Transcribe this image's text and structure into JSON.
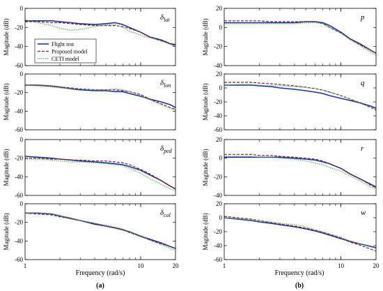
{
  "figure": {
    "xlabel": "Frequency (rad/s)",
    "ylabel": "Magitude (dB)",
    "panel_labels": [
      "(a)",
      "(b)"
    ],
    "legend": [
      {
        "name": "Flight test",
        "color": "#1f2fb0",
        "style": "solid"
      },
      {
        "name": "Proposed model",
        "color": "#8b1a1a",
        "style": "dashed"
      },
      {
        "name": "CETI model",
        "color": "#3cb043",
        "style": "dotted"
      }
    ],
    "x_ticks": [
      "1",
      "10",
      "20"
    ]
  },
  "chart_data": [
    {
      "type": "line",
      "panel": "a",
      "title": "δlat",
      "title_main": "δ",
      "title_sub": "lat",
      "xscale": "log",
      "xlim": [
        1,
        20
      ],
      "ylim": [
        -60,
        0
      ],
      "yticks": [
        0,
        -20,
        -40,
        -60
      ],
      "legend": true,
      "x": [
        1,
        1.3,
        1.7,
        2,
        2.5,
        3,
        4,
        5,
        6,
        7,
        8,
        10,
        12,
        15,
        18,
        20
      ],
      "series": [
        {
          "name": "Flight test",
          "values": [
            -13,
            -13,
            -13,
            -14,
            -15,
            -16,
            -17,
            -16,
            -15,
            -17,
            -20,
            -25,
            -30,
            -33,
            -37,
            -38
          ]
        },
        {
          "name": "Proposed model",
          "values": [
            -14,
            -14,
            -15,
            -15,
            -16,
            -17,
            -18,
            -18,
            -18,
            -19,
            -21,
            -25,
            -30,
            -34,
            -37,
            -39
          ]
        },
        {
          "name": "CETI model",
          "values": [
            -12,
            -15,
            -18,
            -21,
            -23,
            -22,
            -19,
            -17,
            -17,
            -20,
            -24,
            -28,
            -31,
            -34,
            -38,
            -40
          ]
        }
      ]
    },
    {
      "type": "line",
      "panel": "a",
      "title": "δlon",
      "title_main": "δ",
      "title_sub": "lon",
      "xscale": "log",
      "xlim": [
        1,
        20
      ],
      "ylim": [
        -60,
        0
      ],
      "yticks": [
        0,
        -20,
        -40,
        -60
      ],
      "x": [
        1,
        1.3,
        1.7,
        2,
        2.5,
        3,
        4,
        5,
        6,
        7,
        8,
        10,
        12,
        15,
        18,
        20
      ],
      "series": [
        {
          "name": "Flight test",
          "values": [
            -12,
            -12,
            -13,
            -14,
            -16,
            -17,
            -18,
            -18,
            -19,
            -19,
            -21,
            -24,
            -27,
            -30,
            -33,
            -36
          ]
        },
        {
          "name": "Proposed model",
          "values": [
            -12,
            -12,
            -13,
            -14,
            -15,
            -16,
            -17,
            -17,
            -17,
            -18,
            -19,
            -22,
            -27,
            -32,
            -36,
            -38
          ]
        },
        {
          "name": "CETI model",
          "values": [
            -12,
            -13,
            -14,
            -15,
            -16,
            -16,
            -17,
            -17,
            -16,
            -17,
            -19,
            -23,
            -28,
            -33,
            -37,
            -39
          ]
        }
      ]
    },
    {
      "type": "line",
      "panel": "a",
      "title": "δped",
      "title_main": "δ",
      "title_sub": "ped",
      "xscale": "log",
      "xlim": [
        1,
        20
      ],
      "ylim": [
        -60,
        0
      ],
      "yticks": [
        0,
        -20,
        -40,
        -60
      ],
      "x": [
        1,
        1.3,
        1.7,
        2,
        2.5,
        3,
        4,
        5,
        6,
        7,
        8,
        10,
        12,
        15,
        18,
        20
      ],
      "series": [
        {
          "name": "Flight test",
          "values": [
            -18,
            -19,
            -20,
            -21,
            -22,
            -23,
            -24,
            -25,
            -26,
            -27,
            -29,
            -33,
            -38,
            -44,
            -50,
            -53
          ]
        },
        {
          "name": "Proposed model",
          "values": [
            -20,
            -20,
            -21,
            -21,
            -22,
            -22,
            -23,
            -23,
            -24,
            -25,
            -27,
            -32,
            -37,
            -44,
            -50,
            -53
          ]
        },
        {
          "name": "CETI model",
          "values": [
            -21,
            -21,
            -22,
            -23,
            -24,
            -24,
            -25,
            -26,
            -27,
            -28,
            -31,
            -36,
            -42,
            -48,
            -53,
            -55
          ]
        }
      ]
    },
    {
      "type": "line",
      "panel": "a",
      "title": "δcol",
      "title_main": "δ",
      "title_sub": "col",
      "xscale": "log",
      "xlim": [
        1,
        20
      ],
      "ylim": [
        -60,
        0
      ],
      "yticks": [
        0,
        -20,
        -40,
        -60
      ],
      "x": [
        1,
        1.3,
        1.7,
        2,
        2.5,
        3,
        4,
        5,
        6,
        7,
        8,
        10,
        12,
        15,
        18,
        20
      ],
      "series": [
        {
          "name": "Flight test",
          "values": [
            -10,
            -10,
            -11,
            -13,
            -16,
            -18,
            -22,
            -24,
            -26,
            -28,
            -30,
            -35,
            -38,
            -42,
            -46,
            -48
          ]
        },
        {
          "name": "Proposed model",
          "values": [
            -10,
            -11,
            -12,
            -14,
            -16,
            -18,
            -21,
            -24,
            -26,
            -28,
            -31,
            -35,
            -39,
            -43,
            -46,
            -48
          ]
        },
        {
          "name": "CETI model",
          "values": [
            -10,
            -10,
            -11,
            -13,
            -15,
            -18,
            -21,
            -23,
            -25,
            -27,
            -30,
            -34,
            -39,
            -44,
            -48,
            -50
          ]
        }
      ]
    },
    {
      "type": "line",
      "panel": "b",
      "title": "p",
      "title_main": "p",
      "title_sub": "",
      "xscale": "log",
      "xlim": [
        1,
        20
      ],
      "ylim": [
        -40,
        20
      ],
      "yticks": [
        20,
        0,
        -20,
        -40
      ],
      "x": [
        1,
        1.3,
        1.7,
        2,
        2.5,
        3,
        4,
        5,
        6,
        7,
        8,
        10,
        12,
        15,
        18,
        20
      ],
      "series": [
        {
          "name": "Flight test",
          "values": [
            5,
            5,
            5,
            5,
            5,
            5,
            5,
            6,
            6,
            5,
            2,
            -5,
            -12,
            -18,
            -24,
            -27
          ]
        },
        {
          "name": "Proposed model",
          "values": [
            7,
            7,
            7,
            7,
            6,
            6,
            6,
            6,
            6,
            4,
            0,
            -6,
            -12,
            -19,
            -24,
            -27
          ]
        },
        {
          "name": "CETI model",
          "values": [
            4,
            4,
            4,
            4,
            4,
            4,
            4,
            5,
            5,
            4,
            0,
            -6,
            -13,
            -20,
            -26,
            -29
          ]
        }
      ]
    },
    {
      "type": "line",
      "panel": "b",
      "title": "q",
      "title_main": "q",
      "title_sub": "",
      "xscale": "log",
      "xlim": [
        1,
        20
      ],
      "ylim": [
        -60,
        20
      ],
      "yticks": [
        20,
        0,
        -20,
        -40,
        -60
      ],
      "x": [
        1,
        1.3,
        1.7,
        2,
        2.5,
        3,
        4,
        5,
        6,
        7,
        8,
        10,
        12,
        15,
        18,
        20
      ],
      "series": [
        {
          "name": "Flight test",
          "values": [
            4,
            4,
            4,
            3,
            2,
            0,
            -2,
            -4,
            -6,
            -8,
            -11,
            -15,
            -18,
            -22,
            -26,
            -29
          ]
        },
        {
          "name": "Proposed model",
          "values": [
            8,
            8,
            8,
            7,
            6,
            5,
            3,
            1,
            -1,
            -3,
            -6,
            -11,
            -16,
            -22,
            -28,
            -32
          ]
        },
        {
          "name": "CETI model",
          "values": [
            4,
            5,
            5,
            4,
            3,
            3,
            2,
            1,
            -1,
            -3,
            -6,
            -11,
            -16,
            -23,
            -28,
            -30
          ]
        }
      ]
    },
    {
      "type": "line",
      "panel": "b",
      "title": "r",
      "title_main": "r",
      "title_sub": "",
      "xscale": "log",
      "xlim": [
        1,
        20
      ],
      "ylim": [
        -40,
        20
      ],
      "yticks": [
        20,
        0,
        -20,
        -40
      ],
      "x": [
        1,
        1.3,
        1.7,
        2,
        2.5,
        3,
        4,
        5,
        6,
        7,
        8,
        10,
        12,
        15,
        18,
        20
      ],
      "series": [
        {
          "name": "Flight test",
          "values": [
            1,
            1,
            1,
            1,
            1,
            1,
            0,
            -1,
            -2,
            -4,
            -6,
            -11,
            -17,
            -23,
            -28,
            -31
          ]
        },
        {
          "name": "Proposed model",
          "values": [
            4,
            4,
            4,
            3,
            3,
            2,
            1,
            0,
            -1,
            -3,
            -6,
            -11,
            -17,
            -23,
            -29,
            -32
          ]
        },
        {
          "name": "CETI model",
          "values": [
            2,
            2,
            2,
            1,
            1,
            0,
            -1,
            -3,
            -5,
            -7,
            -10,
            -14,
            -19,
            -25,
            -31,
            -33
          ]
        }
      ]
    },
    {
      "type": "line",
      "panel": "b",
      "title": "w",
      "title_main": "w",
      "title_sub": "",
      "xscale": "log",
      "xlim": [
        1,
        20
      ],
      "ylim": [
        -60,
        20
      ],
      "yticks": [
        20,
        0,
        -20,
        -40,
        -60
      ],
      "x": [
        1,
        1.3,
        1.7,
        2,
        2.5,
        3,
        4,
        5,
        6,
        7,
        8,
        10,
        12,
        15,
        18,
        20
      ],
      "series": [
        {
          "name": "Flight test",
          "values": [
            0,
            -2,
            -4,
            -6,
            -8,
            -10,
            -13,
            -16,
            -19,
            -22,
            -25,
            -30,
            -34,
            -38,
            -41,
            -43
          ]
        },
        {
          "name": "Proposed model",
          "values": [
            2,
            0,
            -2,
            -4,
            -7,
            -9,
            -12,
            -15,
            -18,
            -21,
            -24,
            -29,
            -35,
            -40,
            -45,
            -48
          ]
        },
        {
          "name": "CETI model",
          "values": [
            0,
            -1,
            -3,
            -4,
            -6,
            -8,
            -10,
            -13,
            -17,
            -20,
            -23,
            -28,
            -33,
            -38,
            -42,
            -44
          ]
        }
      ]
    }
  ]
}
